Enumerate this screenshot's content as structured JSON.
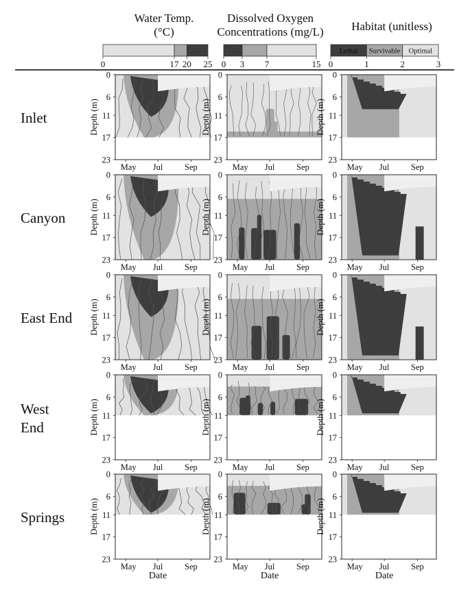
{
  "colors": {
    "dark": "#3d3d3d",
    "mid": "#a7a7a7",
    "light": "#e2e2e2",
    "white": "#ffffff",
    "line": "#555555"
  },
  "columns": [
    {
      "title": "Water Temp.\n(°C)",
      "scale_max": 25,
      "legend": [
        {
          "from": 0,
          "to": 17,
          "fill": "light"
        },
        {
          "from": 17,
          "to": 20,
          "fill": "mid"
        },
        {
          "from": 20,
          "to": 25,
          "fill": "dark"
        }
      ],
      "ticks": [
        "0",
        "17",
        "20",
        "25"
      ],
      "tick_values": [
        0,
        17,
        20,
        25
      ],
      "band_labels": []
    },
    {
      "title": "Dissolved Oxygen\nConcentrations (mg/L)",
      "scale_max": 15,
      "legend": [
        {
          "from": 0,
          "to": 3,
          "fill": "dark"
        },
        {
          "from": 3,
          "to": 7,
          "fill": "mid"
        },
        {
          "from": 7,
          "to": 15,
          "fill": "light"
        }
      ],
      "ticks": [
        "0",
        "3",
        "7",
        "15"
      ],
      "tick_values": [
        0,
        3,
        7,
        15
      ],
      "band_labels": []
    },
    {
      "title": "Habitat (unitless)",
      "scale_max": 3,
      "legend": [
        {
          "from": 0,
          "to": 1,
          "fill": "dark"
        },
        {
          "from": 1,
          "to": 2,
          "fill": "mid"
        },
        {
          "from": 2,
          "to": 3,
          "fill": "light"
        }
      ],
      "ticks": [
        "0",
        "1",
        "2",
        "3"
      ],
      "tick_values": [
        0,
        1,
        2,
        3
      ],
      "band_labels": [
        "Lethal",
        "Survivable",
        "Optimal"
      ]
    }
  ],
  "sites": [
    "Inlet",
    "Canyon",
    "East End",
    "West\nEnd",
    "Springs"
  ],
  "site_max_depth": [
    17,
    23,
    23,
    11,
    11
  ],
  "y_axis_label": "Depth (m)",
  "y_ticks": [
    "0",
    "6",
    "11",
    "17",
    "23"
  ],
  "y_tick_values": [
    0,
    6,
    11,
    17,
    23
  ],
  "x_ticks": [
    "May",
    "Jul",
    "Sep"
  ],
  "x_tick_positions": [
    0.11,
    0.45,
    0.8
  ],
  "x_axis_label": "Date",
  "chart_data": {
    "type": "heatmap",
    "description_panels": "15 contour panels: 5 sites (rows) x 3 variables (columns)",
    "x": "Date (May–Sep)",
    "y": "Depth (m), 0–23",
    "ylim": [
      0,
      23
    ],
    "series": [
      "Water Temp. (°C)",
      "Dissolved Oxygen Concentrations (mg/L)",
      "Habitat (unitless)"
    ],
    "categories": [
      "Inlet",
      "Canyon",
      "East End",
      "West End",
      "Springs"
    ]
  }
}
